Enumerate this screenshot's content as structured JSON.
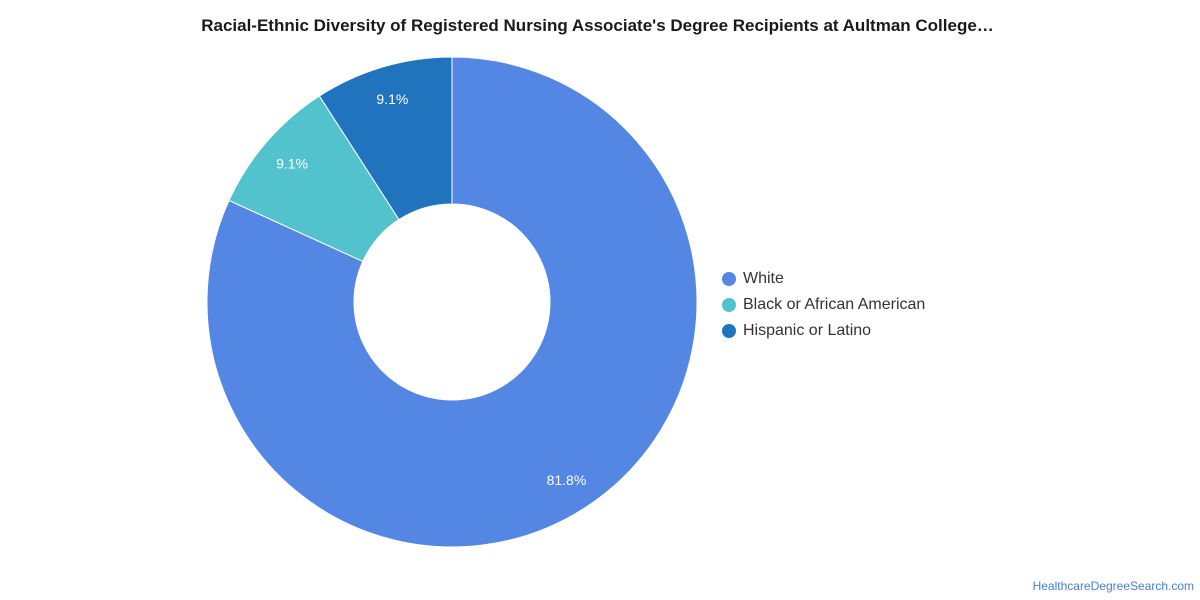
{
  "chart_data": {
    "type": "pie",
    "title": "Racial-Ethnic Diversity of Registered Nursing Associate's Degree Recipients at Aultman College…",
    "donut": true,
    "categories": [
      "White",
      "Black or African American",
      "Hispanic or Latino"
    ],
    "values": [
      81.8,
      9.1,
      9.1
    ],
    "value_labels": [
      "81.8%",
      "9.1%",
      "9.1%"
    ],
    "colors": [
      "#5486e4",
      "#52c2cd",
      "#1f74bd"
    ],
    "legend_position": "right"
  },
  "watermark": "HealthcareDegreeSearch.com"
}
